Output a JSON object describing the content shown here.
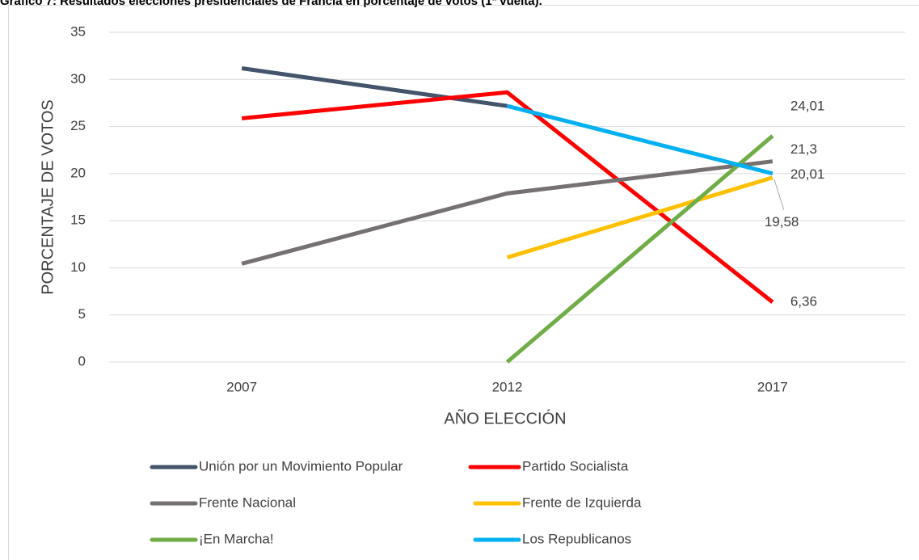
{
  "chart_data": {
    "type": "line",
    "title": "Gráfico 7: Resultados elecciones presidenciales de Francia en porcentaje de votos (1ª vuelta).",
    "x_label": "AÑO ELECCIÓN",
    "y_label": "PORCENTAJE DE VOTOS",
    "categories": [
      "2007",
      "2012",
      "2017"
    ],
    "ylim": [
      0,
      35
    ],
    "yticks": [
      0,
      5,
      10,
      15,
      20,
      25,
      30,
      35
    ],
    "grid": true,
    "legend": "bottom",
    "series": [
      {
        "name": "Unión por un Movimiento Popular",
        "color": "#44546a",
        "values": [
          31.18,
          27.18,
          null
        ]
      },
      {
        "name": "Partido Socialista",
        "color": "#ff0000",
        "values": [
          25.87,
          28.63,
          6.36
        ],
        "value_labels": [
          null,
          null,
          "6,36"
        ]
      },
      {
        "name": "Frente Nacional",
        "color": "#767171",
        "values": [
          10.44,
          17.9,
          21.3
        ],
        "value_labels": [
          null,
          null,
          "21,3"
        ]
      },
      {
        "name": "Frente de Izquierda",
        "color": "#ffc000",
        "values": [
          null,
          11.1,
          19.58
        ],
        "value_labels": [
          null,
          null,
          "19,58"
        ]
      },
      {
        "name": "¡En Marcha!",
        "color": "#70ad47",
        "values": [
          null,
          0,
          24.01
        ],
        "value_labels": [
          null,
          null,
          "24,01"
        ]
      },
      {
        "name": "Los Republicanos",
        "color": "#00b0f0",
        "values": [
          null,
          27.18,
          20.01
        ],
        "value_labels": [
          null,
          null,
          "20,01"
        ]
      }
    ]
  }
}
